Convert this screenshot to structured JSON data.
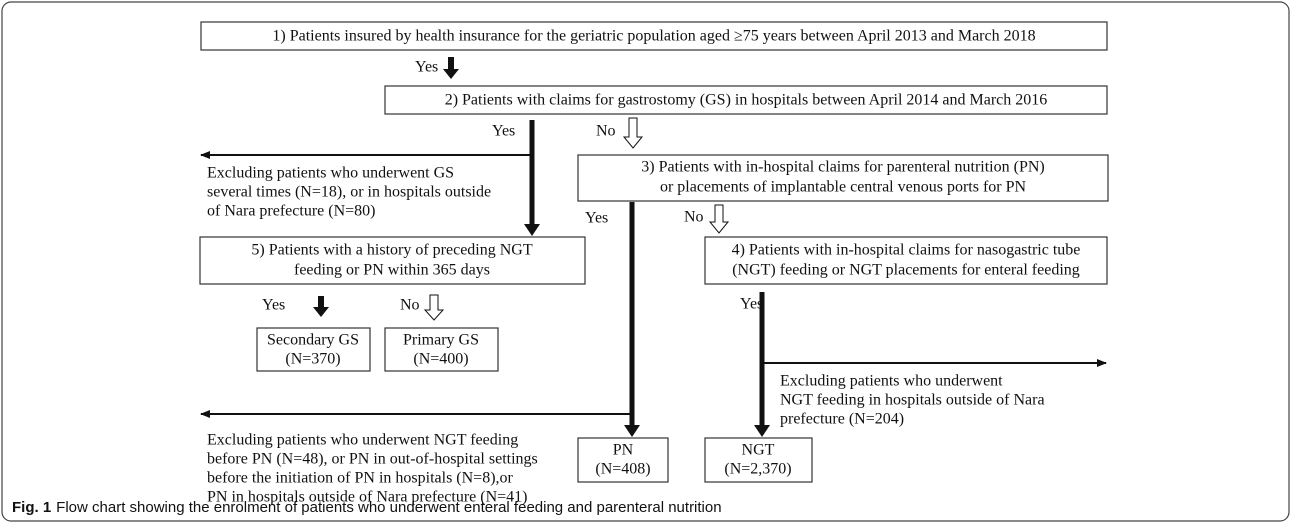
{
  "nodes": [
    {
      "lines": [
        "1)  Patients insured by health insurance for the geriatric population aged ≥75 years between April 2013 and March 2018"
      ]
    },
    {
      "lines": [
        "2)  Patients with claims for gastrostomy (GS) in hospitals between April 2014 and March 2016"
      ]
    },
    {
      "lines": [
        "3)  Patients with in-hospital claims for parenteral nutrition (PN)",
        "or placements of implantable central venous ports for PN"
      ]
    },
    {
      "lines": [
        "5)  Patients with a history of preceding NGT",
        "feeding or PN within 365 days"
      ]
    },
    {
      "lines": [
        "4)  Patients with in-hospital claims for nasogastric tube",
        "(NGT) feeding or NGT placements for enteral feeding"
      ]
    },
    {
      "lines": [
        "Secondary GS",
        "(N=370)"
      ]
    },
    {
      "lines": [
        "Primary GS",
        "(N=400)"
      ]
    },
    {
      "lines": [
        "PN",
        "(N=408)"
      ]
    },
    {
      "lines": [
        "NGT",
        "(N=2,370)"
      ]
    }
  ],
  "edge_labels": [
    "Yes",
    "Yes",
    "No",
    "Yes",
    "No",
    "Yes",
    "No",
    "Yes"
  ],
  "exclusions": [
    [
      "Excluding patients who underwent GS",
      "several times (N=18), or in hospitals outside",
      "of Nara prefecture (N=80)"
    ],
    [
      "Excluding patients who underwent",
      "NGT feeding in hospitals outside of Nara",
      "prefecture (N=204)"
    ],
    [
      "Excluding patients who underwent NGT feeding",
      "before PN (N=48), or PN in out-of-hospital settings",
      "before the initiation of PN in hospitals (N=8),or",
      "PN in hospitals outside of Nara prefecture (N=41)"
    ]
  ],
  "caption": {
    "label": "Fig. 1",
    "text": "Flow chart showing the enrolment of patients who underwent enteral feeding and parenteral nutrition"
  }
}
